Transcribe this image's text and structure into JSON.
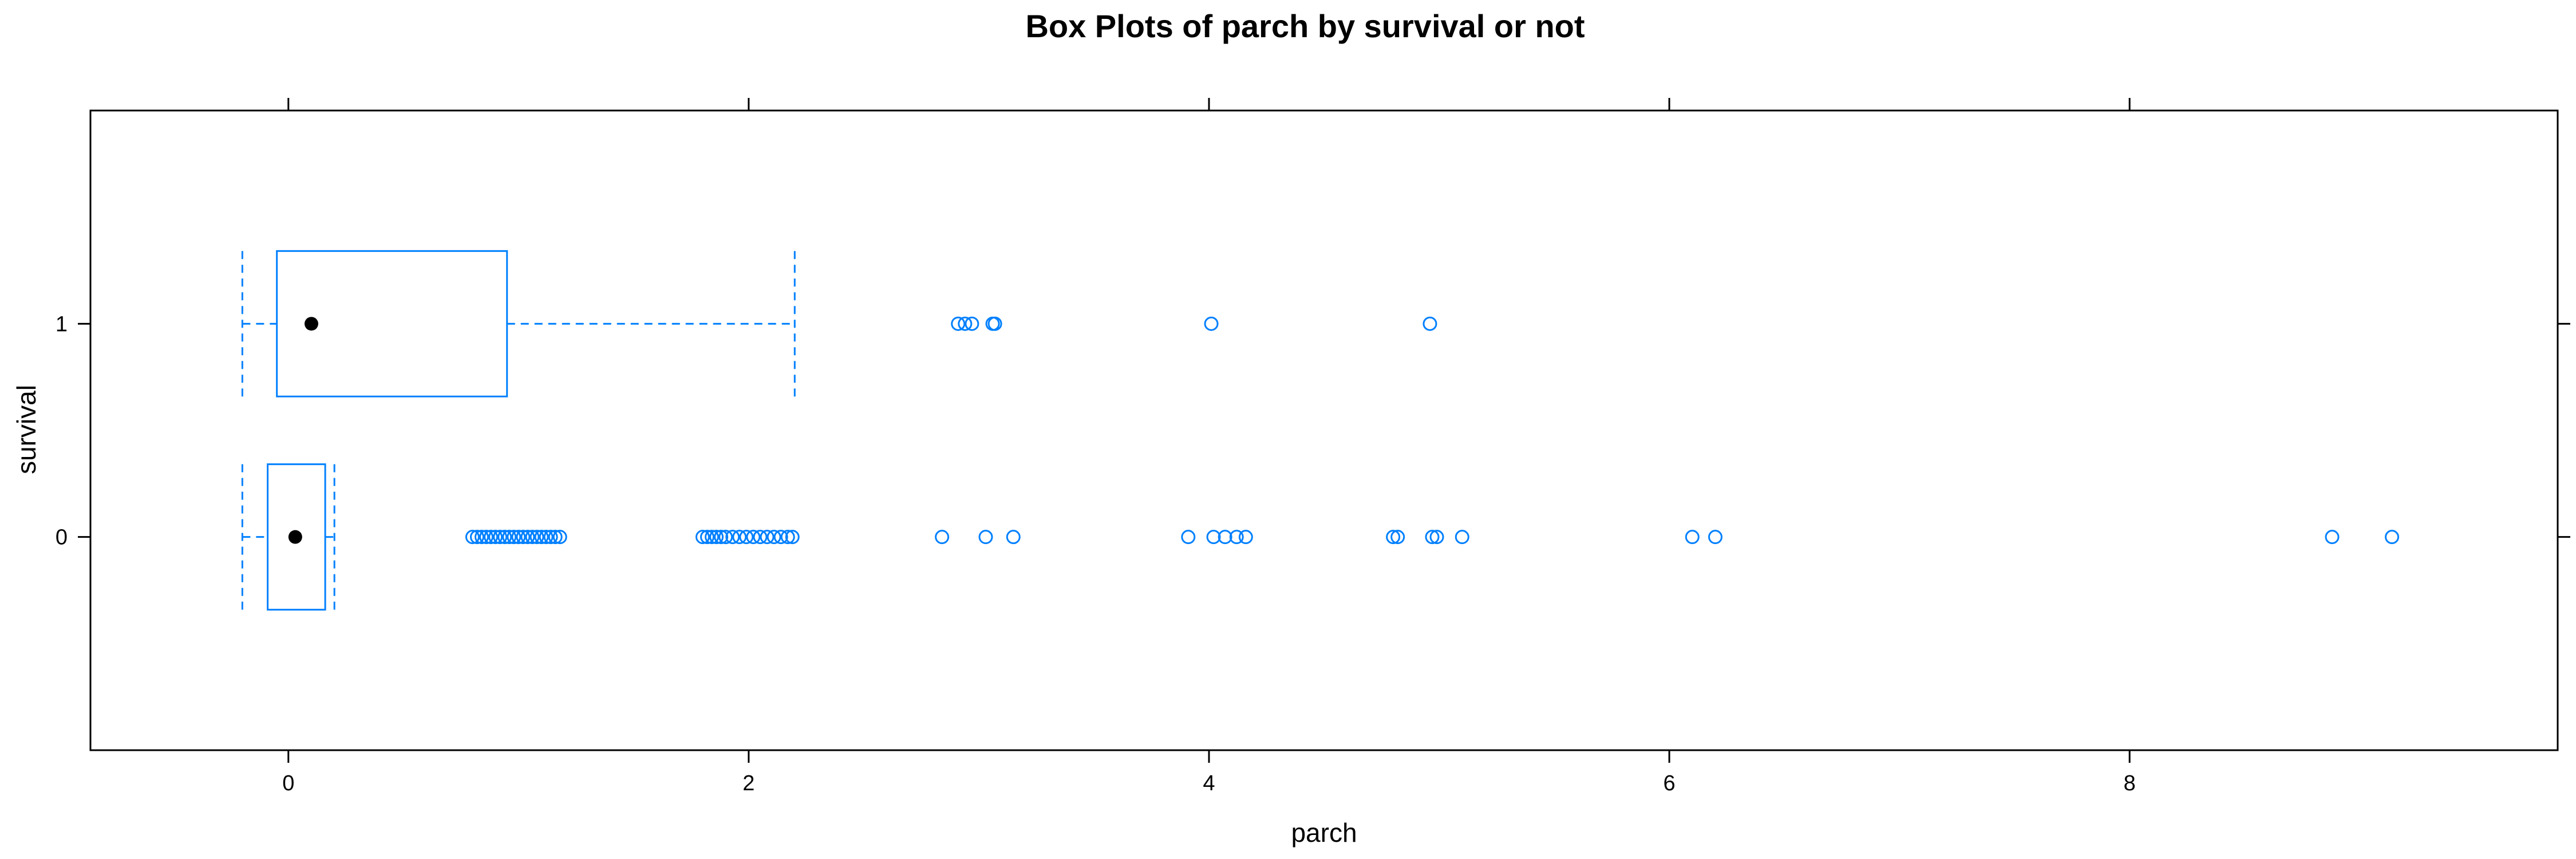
{
  "chart_data": {
    "type": "boxplot",
    "title": "Box Plots of parch by survival or not",
    "xlabel": "parch",
    "ylabel": "survival",
    "xlim": [
      -0.86,
      9.86
    ],
    "x_ticks": [
      0,
      2,
      4,
      6,
      8
    ],
    "categories": [
      "0",
      "1"
    ],
    "grid": false,
    "colors": {
      "box": "#0080ff",
      "median": "#000000",
      "frame": "#000000"
    },
    "series": [
      {
        "category": "0",
        "whisker_low": -0.2,
        "q1": -0.09,
        "median": 0.03,
        "q3": 0.16,
        "whisker_high": 0.2,
        "outliers": [
          0.8,
          0.82,
          0.84,
          0.86,
          0.88,
          0.9,
          0.92,
          0.94,
          0.96,
          0.98,
          1.0,
          1.02,
          1.04,
          1.06,
          1.08,
          1.1,
          1.12,
          1.14,
          1.16,
          1.18,
          1.8,
          1.82,
          1.84,
          1.86,
          1.88,
          1.9,
          1.93,
          1.96,
          1.99,
          2.02,
          2.05,
          2.08,
          2.11,
          2.14,
          2.17,
          2.19,
          2.84,
          3.03,
          3.15,
          3.91,
          4.02,
          4.07,
          4.12,
          4.16,
          4.8,
          4.82,
          4.97,
          4.99,
          5.1,
          6.1,
          6.2,
          8.88,
          9.14
        ]
      },
      {
        "category": "1",
        "whisker_low": -0.2,
        "q1": -0.05,
        "median": 0.1,
        "q3": 0.95,
        "whisker_high": 2.2,
        "outliers": [
          2.91,
          2.94,
          2.97,
          3.06,
          3.07,
          4.01,
          4.96
        ]
      }
    ]
  }
}
